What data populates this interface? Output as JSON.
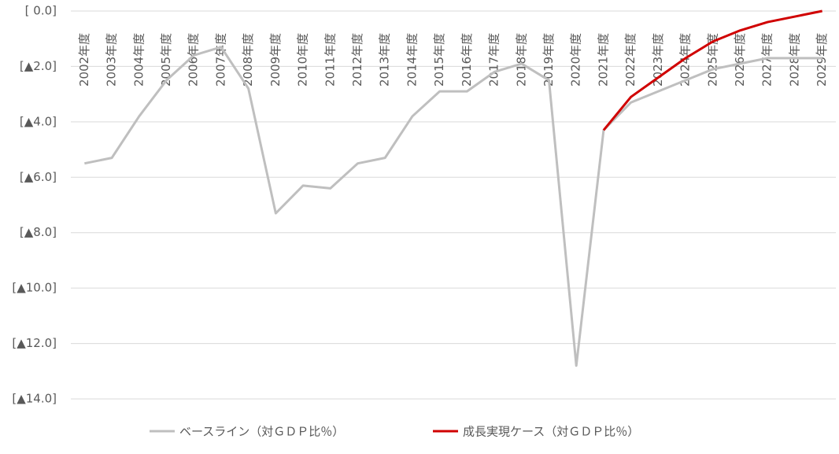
{
  "chart_data": {
    "type": "line",
    "categories": [
      "2002年度",
      "2003年度",
      "2004年度",
      "2005年度",
      "2006年度",
      "2007年度",
      "2008年度",
      "2009年度",
      "2010年度",
      "2011年度",
      "2012年度",
      "2013年度",
      "2014年度",
      "2015年度",
      "2016年度",
      "2017年度",
      "2018年度",
      "2019年度",
      "2020年度",
      "2021年度",
      "2022年度",
      "2023年度",
      "2024年度",
      "2025年度",
      "2026年度",
      "2027年度",
      "2028年度",
      "2029年度"
    ],
    "series": [
      {
        "name": "ベースライン（対ＧＤＰ比％）",
        "color": "#bfbfbf",
        "values": [
          -5.5,
          -5.3,
          -3.8,
          -2.5,
          -1.6,
          -1.3,
          -2.8,
          -7.3,
          -6.3,
          -6.4,
          -5.5,
          -5.3,
          -3.8,
          -2.9,
          -2.9,
          -2.2,
          -1.9,
          -2.5,
          -12.8,
          -4.3,
          -3.3,
          -2.9,
          -2.5,
          -2.1,
          -1.9,
          -1.7,
          -1.7,
          -1.7
        ]
      },
      {
        "name": "成長実現ケース（対ＧＤＰ比％）",
        "color": "#d00000",
        "values": [
          null,
          null,
          null,
          null,
          null,
          null,
          null,
          null,
          null,
          null,
          null,
          null,
          null,
          null,
          null,
          null,
          null,
          null,
          null,
          -4.3,
          -3.1,
          -2.4,
          -1.7,
          -1.1,
          -0.7,
          -0.4,
          -0.2,
          0.0
        ]
      }
    ],
    "ylim": [
      -14,
      0
    ],
    "yticks": [
      {
        "value": 0,
        "label": "[ 0.0]"
      },
      {
        "value": -2,
        "label": "[▲2.0]"
      },
      {
        "value": -4,
        "label": "[▲4.0]"
      },
      {
        "value": -6,
        "label": "[▲6.0]"
      },
      {
        "value": -8,
        "label": "[▲8.0]"
      },
      {
        "value": -10,
        "label": "[▲10.0]"
      },
      {
        "value": -12,
        "label": "[▲12.0]"
      },
      {
        "value": -14,
        "label": "[▲14.0]"
      }
    ],
    "grid": true,
    "legend": "bottom"
  }
}
